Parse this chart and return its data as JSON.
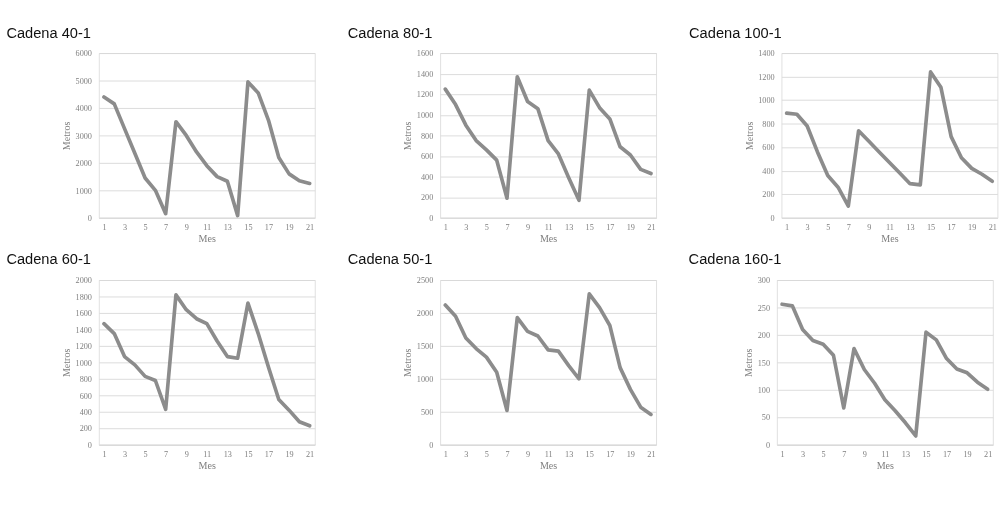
{
  "chart_data": [
    {
      "type": "line",
      "title": "Cadena 40-1",
      "xlabel": "Mes",
      "ylabel": "Metros",
      "x": [
        1,
        2,
        3,
        4,
        5,
        6,
        7,
        8,
        9,
        10,
        11,
        12,
        13,
        14,
        15,
        16,
        17,
        18,
        19,
        20,
        21
      ],
      "color": "#8c8c8c",
      "grid": "y",
      "xlim": [
        0.5,
        21.5
      ],
      "xticks": [
        1,
        3,
        5,
        7,
        9,
        11,
        13,
        15,
        17,
        19,
        21
      ],
      "ylim": [
        0,
        6000
      ],
      "yticks": [
        0,
        1000,
        2000,
        3000,
        4000,
        5000,
        6000
      ],
      "values": [
        4400,
        4150,
        3250,
        2350,
        1450,
        1000,
        150,
        3500,
        3000,
        2400,
        1900,
        1500,
        1330,
        80,
        4950,
        4550,
        3550,
        2200,
        1600,
        1350,
        1250
      ]
    },
    {
      "type": "line",
      "title": "Cadena 80-1",
      "xlabel": "Mes",
      "ylabel": "Metros",
      "x": [
        1,
        2,
        3,
        4,
        5,
        6,
        7,
        8,
        9,
        10,
        11,
        12,
        13,
        14,
        15,
        16,
        17,
        18,
        19,
        20,
        21
      ],
      "color": "#8c8c8c",
      "grid": "y",
      "xlim": [
        0.5,
        21.5
      ],
      "xticks": [
        1,
        3,
        5,
        7,
        9,
        11,
        13,
        15,
        17,
        19,
        21
      ],
      "ylim": [
        0,
        1600
      ],
      "yticks": [
        0,
        200,
        400,
        600,
        800,
        1000,
        1200,
        1400,
        1600
      ],
      "values": [
        1250,
        1100,
        900,
        750,
        660,
        560,
        190,
        1370,
        1130,
        1060,
        750,
        620,
        390,
        170,
        1240,
        1070,
        960,
        690,
        610,
        470,
        430
      ]
    },
    {
      "type": "line",
      "title": "Cadena 100-1",
      "xlabel": "Mes",
      "ylabel": "Metros",
      "x": [
        1,
        2,
        3,
        4,
        5,
        6,
        7,
        8,
        9,
        10,
        11,
        12,
        13,
        14,
        15,
        16,
        17,
        18,
        19,
        20,
        21
      ],
      "color": "#8c8c8c",
      "grid": "y",
      "xlim": [
        0.5,
        21.5
      ],
      "xticks": [
        1,
        3,
        5,
        7,
        9,
        11,
        13,
        15,
        17,
        19,
        21
      ],
      "ylim": [
        0,
        1400
      ],
      "yticks": [
        0,
        200,
        400,
        600,
        800,
        1000,
        1200,
        1400
      ],
      "values": [
        890,
        880,
        780,
        560,
        360,
        260,
        100,
        740,
        650,
        560,
        470,
        380,
        290,
        280,
        1240,
        1110,
        690,
        510,
        420,
        370,
        310
      ]
    },
    {
      "type": "line",
      "title": "Cadena 60-1",
      "xlabel": "Mes",
      "ylabel": "Metros",
      "x": [
        1,
        2,
        3,
        4,
        5,
        6,
        7,
        8,
        9,
        10,
        11,
        12,
        13,
        14,
        15,
        16,
        17,
        18,
        19,
        20,
        21
      ],
      "color": "#8c8c8c",
      "grid": "y",
      "xlim": [
        0.5,
        21.5
      ],
      "xticks": [
        1,
        3,
        5,
        7,
        9,
        11,
        13,
        15,
        17,
        19,
        21
      ],
      "ylim": [
        0,
        2000
      ],
      "yticks": [
        0,
        200,
        400,
        600,
        800,
        1000,
        1200,
        1400,
        1600,
        1800,
        2000
      ],
      "values": [
        1470,
        1350,
        1070,
        970,
        830,
        780,
        430,
        1820,
        1640,
        1530,
        1470,
        1260,
        1070,
        1050,
        1720,
        1350,
        940,
        550,
        420,
        280,
        230
      ]
    },
    {
      "type": "line",
      "title": "Cadena 50-1",
      "xlabel": "Mes",
      "ylabel": "Metros",
      "x": [
        1,
        2,
        3,
        4,
        5,
        6,
        7,
        8,
        9,
        10,
        11,
        12,
        13,
        14,
        15,
        16,
        17,
        18,
        19,
        20,
        21
      ],
      "color": "#8c8c8c",
      "grid": "y",
      "xlim": [
        0.5,
        21.5
      ],
      "xticks": [
        1,
        3,
        5,
        7,
        9,
        11,
        13,
        15,
        17,
        19,
        21
      ],
      "ylim": [
        0,
        2500
      ],
      "yticks": [
        0,
        500,
        1000,
        1500,
        2000,
        2500
      ],
      "values": [
        2120,
        1950,
        1620,
        1460,
        1330,
        1100,
        520,
        1930,
        1720,
        1650,
        1440,
        1420,
        1200,
        1000,
        2290,
        2080,
        1810,
        1170,
        840,
        570,
        460
      ]
    },
    {
      "type": "line",
      "title": "Cadena 160-1",
      "xlabel": "Mes",
      "ylabel": "Metros",
      "x": [
        1,
        2,
        3,
        4,
        5,
        6,
        7,
        8,
        9,
        10,
        11,
        12,
        13,
        14,
        15,
        16,
        17,
        18,
        19,
        20,
        21
      ],
      "color": "#8c8c8c",
      "grid": "y",
      "xlim": [
        0.5,
        21.5
      ],
      "xticks": [
        1,
        3,
        5,
        7,
        9,
        11,
        13,
        15,
        17,
        19,
        21
      ],
      "ylim": [
        0,
        300
      ],
      "yticks": [
        0,
        50,
        100,
        150,
        200,
        250,
        300
      ],
      "values": [
        256,
        253,
        210,
        190,
        183,
        163,
        67,
        175,
        137,
        112,
        82,
        62,
        40,
        16,
        205,
        191,
        157,
        138,
        131,
        114,
        101
      ]
    }
  ]
}
